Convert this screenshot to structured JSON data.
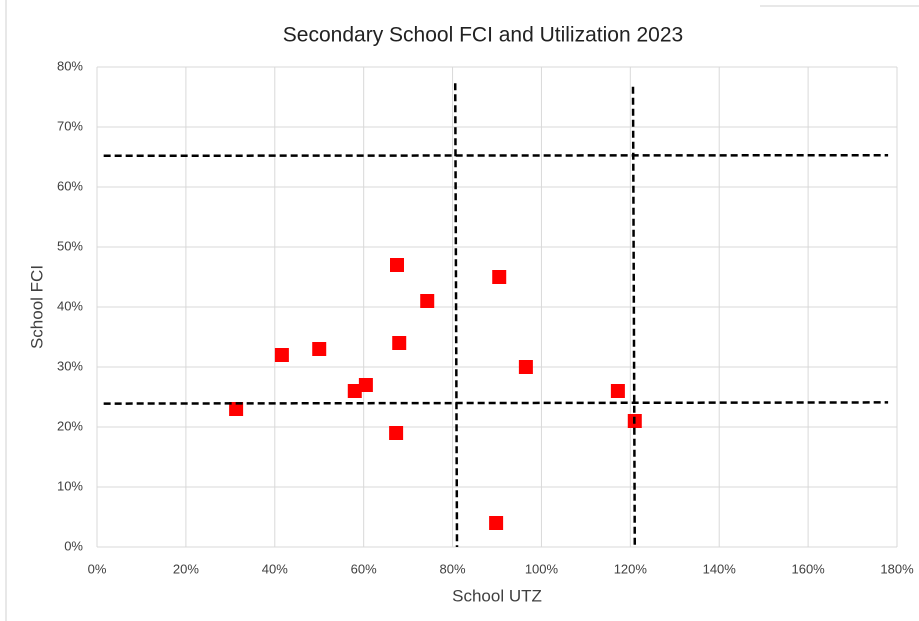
{
  "chart_data": {
    "type": "scatter",
    "title": "Secondary School FCI and Utilization 2023",
    "x_label": "School UTZ",
    "y_label": "School FCI",
    "xlim": [
      0,
      180
    ],
    "ylim": [
      0,
      80
    ],
    "xticks": [
      {
        "value": 0,
        "label": "0%"
      },
      {
        "value": 20,
        "label": "20%"
      },
      {
        "value": 40,
        "label": "40%"
      },
      {
        "value": 60,
        "label": "60%"
      },
      {
        "value": 80,
        "label": "80%"
      },
      {
        "value": 100,
        "label": "100%"
      },
      {
        "value": 120,
        "label": "120%"
      },
      {
        "value": 140,
        "label": "140%"
      },
      {
        "value": 160,
        "label": "160%"
      },
      {
        "value": 180,
        "label": "180%"
      }
    ],
    "yticks": [
      {
        "value": 0,
        "label": "0%"
      },
      {
        "value": 10,
        "label": "10%"
      },
      {
        "value": 20,
        "label": "20%"
      },
      {
        "value": 30,
        "label": "30%"
      },
      {
        "value": 40,
        "label": "40%"
      },
      {
        "value": 50,
        "label": "50%"
      },
      {
        "value": 60,
        "label": "60%"
      },
      {
        "value": 70,
        "label": "70%"
      },
      {
        "value": 80,
        "label": "80%"
      }
    ],
    "grid": true,
    "points": {
      "color": "#ff0000",
      "x": [
        31.3,
        41.6,
        50,
        58,
        60.5,
        67.3,
        67.5,
        68,
        74.3,
        89.8,
        90.5,
        96.5,
        117.2,
        121
      ],
      "y": [
        23,
        32,
        33,
        26,
        27,
        19,
        47,
        34,
        41,
        4,
        45,
        30,
        26,
        21
      ]
    },
    "lines": [
      {
        "color": "#000000",
        "x": [
          1.5,
          178
        ],
        "y": [
          65.2,
          65.3
        ]
      },
      {
        "color": "#000000",
        "x": [
          1.5,
          178
        ],
        "y": [
          23.9,
          24.1
        ]
      },
      {
        "color": "#000000",
        "x": [
          80.6,
          81
        ],
        "y": [
          77.3,
          0
        ]
      },
      {
        "color": "#000000",
        "x": [
          120.6,
          121
        ],
        "y": [
          76.7,
          0
        ]
      }
    ]
  }
}
